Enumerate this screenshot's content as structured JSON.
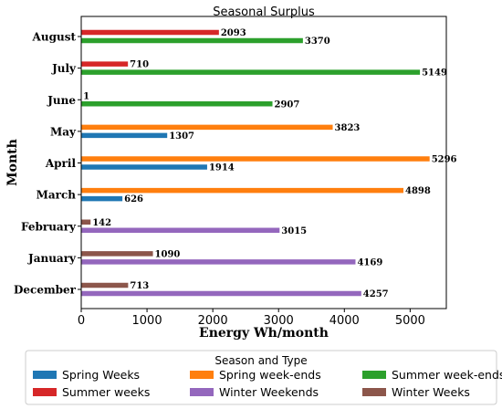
{
  "chart_data": {
    "type": "bar",
    "orientation": "horizontal",
    "title": "Seasonal Surplus",
    "xlabel": "Energy Wh/month",
    "ylabel": "Month",
    "xlim": [
      0,
      5550
    ],
    "xticks": [
      0,
      1000,
      2000,
      3000,
      4000,
      5000
    ],
    "categories": [
      "December",
      "January",
      "February",
      "March",
      "April",
      "May",
      "June",
      "July",
      "August"
    ],
    "legend": {
      "title": "Season and Type",
      "placement": "bottom-outside"
    },
    "series": [
      {
        "name": "Spring Weeks",
        "color": "#1f77b4",
        "values": {
          "March": 626,
          "April": 1914,
          "May": 1307
        }
      },
      {
        "name": "Spring week-ends",
        "color": "#ff7f0e",
        "values": {
          "March": 4898,
          "April": 5296,
          "May": 3823
        }
      },
      {
        "name": "Summer week-ends",
        "color": "#2ca02c",
        "values": {
          "June": 2907,
          "July": 5149,
          "August": 3370
        }
      },
      {
        "name": "Summer weeks",
        "color": "#d62728",
        "values": {
          "June": 1,
          "July": 710,
          "August": 2093
        }
      },
      {
        "name": "Winter Weekends",
        "color": "#9467bd",
        "values": {
          "December": 4257,
          "January": 4169,
          "February": 3015
        }
      },
      {
        "name": "Winter Weeks",
        "color": "#8c564b",
        "values": {
          "December": 713,
          "January": 1090,
          "February": 142
        }
      }
    ],
    "grid": false
  }
}
